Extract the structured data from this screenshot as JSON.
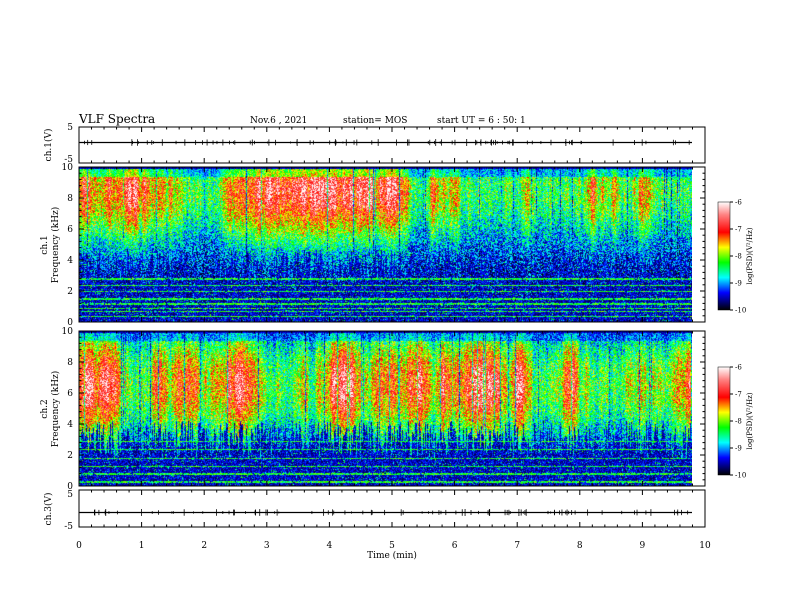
{
  "header": {
    "title": "VLF Spectra",
    "date": "Nov.6 , 2021",
    "station": "station= MOS",
    "start": "start UT = 6 : 50: 1"
  },
  "chart_data": [
    {
      "type": "line",
      "ylabel": "ch.1(V)",
      "xlim": [
        0,
        10
      ],
      "ylim": [
        -5,
        5
      ],
      "yticklabels": [
        "5",
        "-5"
      ],
      "value": 0
    },
    {
      "type": "heatmap",
      "ylabel_line1": "ch.1",
      "ylabel_line2": "Frequency (kHz)",
      "xlim": [
        0,
        10
      ],
      "ylim": [
        0,
        10
      ],
      "yticklabels": [
        "0",
        "2",
        "4",
        "6",
        "8",
        "10"
      ],
      "colorbar": {
        "label": "log(PSD)(V²/Hz)",
        "ticks": [
          "-6",
          "-7",
          "-8",
          "-9",
          "-10"
        ],
        "colors": [
          "#ffffff",
          "#ff0000",
          "#ffff00",
          "#00ff00",
          "#00ffff",
          "#0000ff",
          "#000000"
        ]
      },
      "band_peak_khz": 8.5,
      "band_upper_edge_khz": 9.8,
      "band_lower_edge_khz": 3.5,
      "lines_khz": [
        0.4,
        0.7,
        0.9,
        1.2,
        1.5,
        2.0,
        2.4,
        2.8
      ]
    },
    {
      "type": "heatmap",
      "ylabel_line1": "ch.2",
      "ylabel_line2": "Frequency (kHz)",
      "xlim": [
        0,
        10
      ],
      "ylim": [
        0,
        10
      ],
      "yticklabels": [
        "0",
        "2",
        "4",
        "6",
        "8",
        "10"
      ],
      "colorbar": {
        "label": "log(PSD)(V²/Hz)",
        "ticks": [
          "-6",
          "-7",
          "-8",
          "-9",
          "-10"
        ],
        "colors": [
          "#ffffff",
          "#ff0000",
          "#ffff00",
          "#00ff00",
          "#00ffff",
          "#0000ff",
          "#000000"
        ]
      },
      "band_peak_khz": 6.5,
      "band_upper_edge_khz": 9.8,
      "band_lower_edge_khz": 3.0,
      "lines_khz": [
        0.3,
        0.8,
        1.3,
        1.8,
        2.4,
        2.9
      ]
    },
    {
      "type": "line",
      "ylabel": "ch.3(V)",
      "xlim": [
        0,
        10
      ],
      "ylim": [
        -5,
        5
      ],
      "yticklabels": [
        "5",
        "-5"
      ],
      "value": 0
    }
  ],
  "xaxis": {
    "label": "Time (min)",
    "ticklabels": [
      "0",
      "1",
      "2",
      "3",
      "4",
      "5",
      "6",
      "7",
      "8",
      "9",
      "10"
    ]
  }
}
